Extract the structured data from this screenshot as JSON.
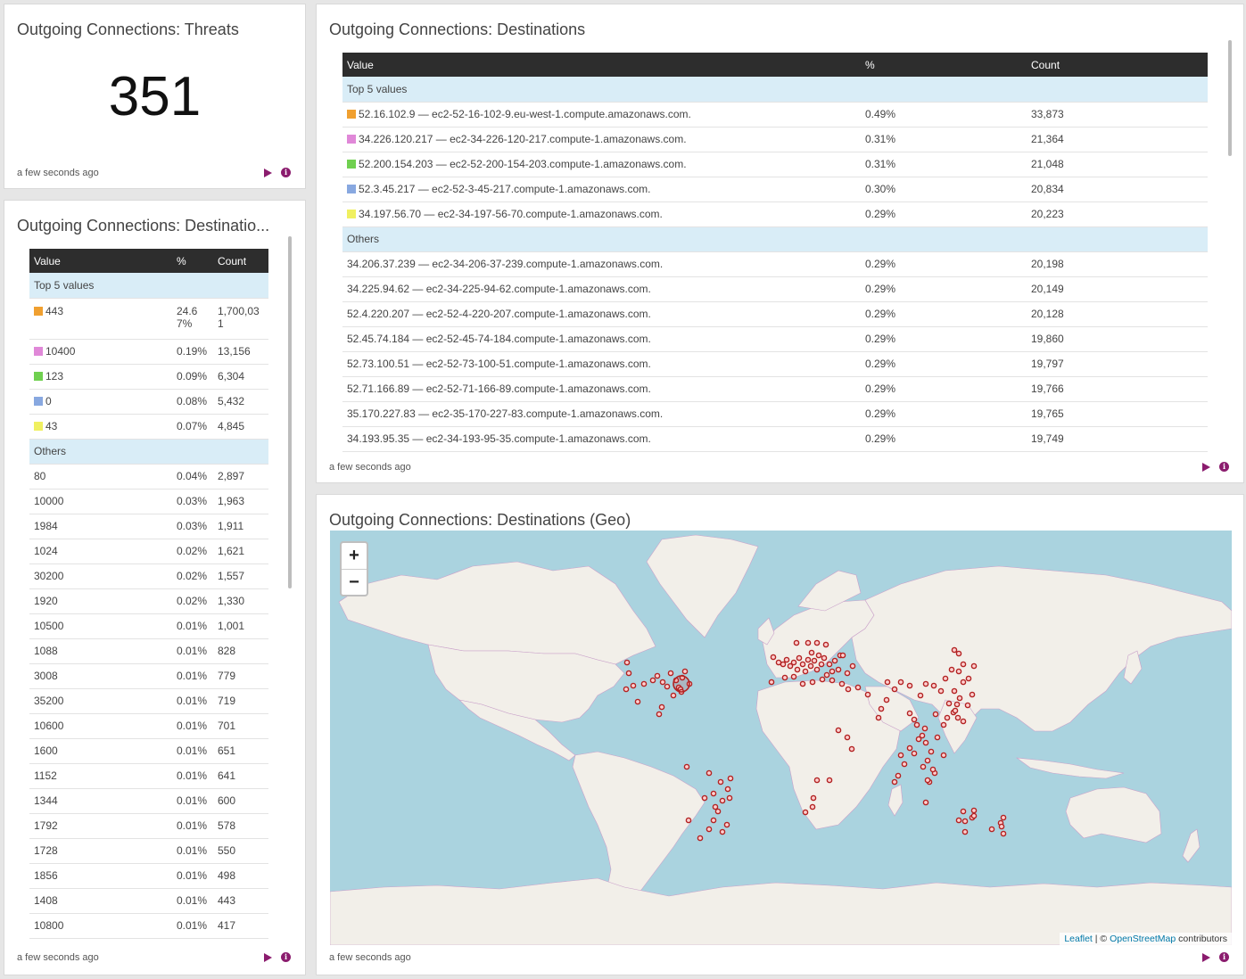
{
  "threats": {
    "title": "Outgoing Connections: Threats",
    "value": "351",
    "time": "a few seconds ago"
  },
  "ports": {
    "title": "Outgoing Connections: Destinatio...",
    "headers": {
      "value": "Value",
      "pct": "%",
      "count": "Count"
    },
    "top_label": "Top 5 values",
    "others_label": "Others",
    "top": [
      {
        "value": "443",
        "pct": "24.6\n7%",
        "count": "1,700,03\n1",
        "color": "#f0a030"
      },
      {
        "value": "10400",
        "pct": "0.19%",
        "count": "13,156",
        "color": "#e088d8"
      },
      {
        "value": "123",
        "pct": "0.09%",
        "count": "6,304",
        "color": "#70d050"
      },
      {
        "value": "0",
        "pct": "0.08%",
        "count": "5,432",
        "color": "#88a8e0"
      },
      {
        "value": "43",
        "pct": "0.07%",
        "count": "4,845",
        "color": "#f0f060"
      }
    ],
    "others": [
      {
        "value": "80",
        "pct": "0.04%",
        "count": "2,897"
      },
      {
        "value": "10000",
        "pct": "0.03%",
        "count": "1,963"
      },
      {
        "value": "1984",
        "pct": "0.03%",
        "count": "1,911"
      },
      {
        "value": "1024",
        "pct": "0.02%",
        "count": "1,621"
      },
      {
        "value": "30200",
        "pct": "0.02%",
        "count": "1,557"
      },
      {
        "value": "1920",
        "pct": "0.02%",
        "count": "1,330"
      },
      {
        "value": "10500",
        "pct": "0.01%",
        "count": "1,001"
      },
      {
        "value": "1088",
        "pct": "0.01%",
        "count": "828"
      },
      {
        "value": "3008",
        "pct": "0.01%",
        "count": "779"
      },
      {
        "value": "35200",
        "pct": "0.01%",
        "count": "719"
      },
      {
        "value": "10600",
        "pct": "0.01%",
        "count": "701"
      },
      {
        "value": "1600",
        "pct": "0.01%",
        "count": "651"
      },
      {
        "value": "1152",
        "pct": "0.01%",
        "count": "641"
      },
      {
        "value": "1344",
        "pct": "0.01%",
        "count": "600"
      },
      {
        "value": "1792",
        "pct": "0.01%",
        "count": "578"
      },
      {
        "value": "1728",
        "pct": "0.01%",
        "count": "550"
      },
      {
        "value": "1856",
        "pct": "0.01%",
        "count": "498"
      },
      {
        "value": "1408",
        "pct": "0.01%",
        "count": "443"
      },
      {
        "value": "10800",
        "pct": "0.01%",
        "count": "417"
      }
    ],
    "time": "a few seconds ago"
  },
  "destinations": {
    "title": "Outgoing Connections: Destinations",
    "headers": {
      "value": "Value",
      "pct": "%",
      "count": "Count"
    },
    "top_label": "Top 5 values",
    "others_label": "Others",
    "top": [
      {
        "value": "52.16.102.9 — ec2-52-16-102-9.eu-west-1.compute.amazonaws.com.",
        "pct": "0.49%",
        "count": "33,873",
        "color": "#f0a030"
      },
      {
        "value": "34.226.120.217 — ec2-34-226-120-217.compute-1.amazonaws.com.",
        "pct": "0.31%",
        "count": "21,364",
        "color": "#e088d8"
      },
      {
        "value": "52.200.154.203 — ec2-52-200-154-203.compute-1.amazonaws.com.",
        "pct": "0.31%",
        "count": "21,048",
        "color": "#70d050"
      },
      {
        "value": "52.3.45.217 — ec2-52-3-45-217.compute-1.amazonaws.com.",
        "pct": "0.30%",
        "count": "20,834",
        "color": "#88a8e0"
      },
      {
        "value": "34.197.56.70 — ec2-34-197-56-70.compute-1.amazonaws.com.",
        "pct": "0.29%",
        "count": "20,223",
        "color": "#f0f060"
      }
    ],
    "others": [
      {
        "value": "34.206.37.239 — ec2-34-206-37-239.compute-1.amazonaws.com.",
        "pct": "0.29%",
        "count": "20,198"
      },
      {
        "value": "34.225.94.62 — ec2-34-225-94-62.compute-1.amazonaws.com.",
        "pct": "0.29%",
        "count": "20,149"
      },
      {
        "value": "52.4.220.207 — ec2-52-4-220-207.compute-1.amazonaws.com.",
        "pct": "0.29%",
        "count": "20,128"
      },
      {
        "value": "52.45.74.184 — ec2-52-45-74-184.compute-1.amazonaws.com.",
        "pct": "0.29%",
        "count": "19,860"
      },
      {
        "value": "52.73.100.51 — ec2-52-73-100-51.compute-1.amazonaws.com.",
        "pct": "0.29%",
        "count": "19,797"
      },
      {
        "value": "52.71.166.89 — ec2-52-71-166-89.compute-1.amazonaws.com.",
        "pct": "0.29%",
        "count": "19,766"
      },
      {
        "value": "35.170.227.83 — ec2-35-170-227-83.compute-1.amazonaws.com.",
        "pct": "0.29%",
        "count": "19,765"
      },
      {
        "value": "34.193.95.35 — ec2-34-193-95-35.compute-1.amazonaws.com.",
        "pct": "0.29%",
        "count": "19,749"
      }
    ],
    "time": "a few seconds ago"
  },
  "geo": {
    "title": "Outgoing Connections: Destinations (Geo)",
    "zoom_in": "+",
    "zoom_out": "−",
    "attribution": {
      "leaflet": "Leaflet",
      "sep": " | © ",
      "osm": "OpenStreetMap",
      "contributors": " contributors"
    },
    "marker_color": "#b22222",
    "time": "a few seconds ago"
  }
}
